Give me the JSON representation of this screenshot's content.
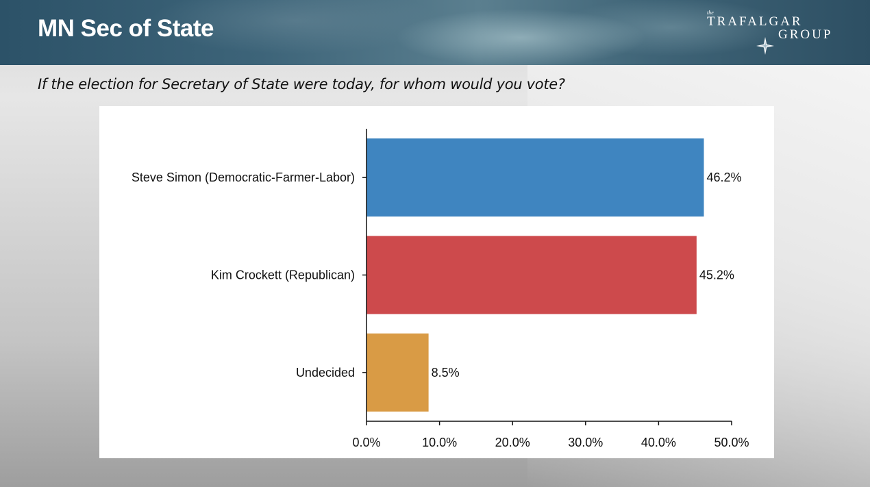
{
  "header": {
    "title": "MN Sec of State",
    "logo": {
      "small": "the",
      "line1": "TRAFALGAR",
      "line2": "GROUP",
      "icon": "compass-star-icon"
    }
  },
  "question": "If the election for Secretary of State were today, for whom would you vote?",
  "chart_data": {
    "type": "bar",
    "orientation": "horizontal",
    "categories": [
      "Steve Simon (Democratic-Farmer-Labor)",
      "Kim Crockett (Republican)",
      "Undecided"
    ],
    "values": [
      46.2,
      45.2,
      8.5
    ],
    "data_labels": [
      "46.2%",
      "45.2%",
      "8.5%"
    ],
    "colors": [
      "#3f85c0",
      "#cd4a4c",
      "#d99b45"
    ],
    "xlim": [
      0,
      50
    ],
    "xticks": [
      0,
      10,
      20,
      30,
      40,
      50
    ],
    "xtick_labels": [
      "0.0%",
      "10.0%",
      "20.0%",
      "30.0%",
      "40.0%",
      "50.0%"
    ],
    "title": "",
    "xlabel": "",
    "ylabel": "",
    "grid": false,
    "legend": "none"
  }
}
